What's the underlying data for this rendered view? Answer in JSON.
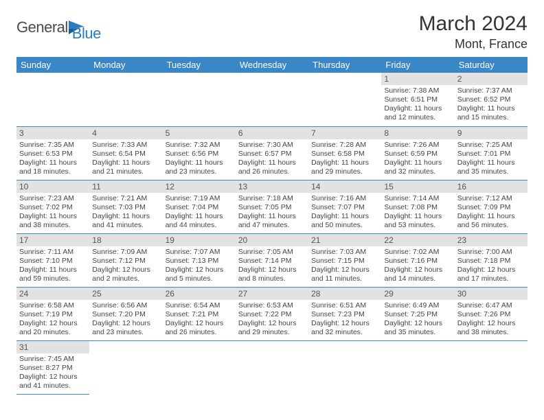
{
  "logo": {
    "text_general": "General",
    "text_blue": "Blue"
  },
  "title": "March 2024",
  "location": "Mont, France",
  "colors": {
    "header_bg": "#3a87c7",
    "header_fg": "#ffffff",
    "daynum_bg": "#e2e2e2",
    "cell_border": "#3a87c7",
    "logo_accent": "#2a7bbf"
  },
  "day_names": [
    "Sunday",
    "Monday",
    "Tuesday",
    "Wednesday",
    "Thursday",
    "Friday",
    "Saturday"
  ],
  "weeks": [
    [
      null,
      null,
      null,
      null,
      null,
      {
        "n": "1",
        "sr": "7:38 AM",
        "ss": "6:51 PM",
        "dl": "11 hours and 12 minutes."
      },
      {
        "n": "2",
        "sr": "7:37 AM",
        "ss": "6:52 PM",
        "dl": "11 hours and 15 minutes."
      }
    ],
    [
      {
        "n": "3",
        "sr": "7:35 AM",
        "ss": "6:53 PM",
        "dl": "11 hours and 18 minutes."
      },
      {
        "n": "4",
        "sr": "7:33 AM",
        "ss": "6:54 PM",
        "dl": "11 hours and 21 minutes."
      },
      {
        "n": "5",
        "sr": "7:32 AM",
        "ss": "6:56 PM",
        "dl": "11 hours and 23 minutes."
      },
      {
        "n": "6",
        "sr": "7:30 AM",
        "ss": "6:57 PM",
        "dl": "11 hours and 26 minutes."
      },
      {
        "n": "7",
        "sr": "7:28 AM",
        "ss": "6:58 PM",
        "dl": "11 hours and 29 minutes."
      },
      {
        "n": "8",
        "sr": "7:26 AM",
        "ss": "6:59 PM",
        "dl": "11 hours and 32 minutes."
      },
      {
        "n": "9",
        "sr": "7:25 AM",
        "ss": "7:01 PM",
        "dl": "11 hours and 35 minutes."
      }
    ],
    [
      {
        "n": "10",
        "sr": "7:23 AM",
        "ss": "7:02 PM",
        "dl": "11 hours and 38 minutes."
      },
      {
        "n": "11",
        "sr": "7:21 AM",
        "ss": "7:03 PM",
        "dl": "11 hours and 41 minutes."
      },
      {
        "n": "12",
        "sr": "7:19 AM",
        "ss": "7:04 PM",
        "dl": "11 hours and 44 minutes."
      },
      {
        "n": "13",
        "sr": "7:18 AM",
        "ss": "7:05 PM",
        "dl": "11 hours and 47 minutes."
      },
      {
        "n": "14",
        "sr": "7:16 AM",
        "ss": "7:07 PM",
        "dl": "11 hours and 50 minutes."
      },
      {
        "n": "15",
        "sr": "7:14 AM",
        "ss": "7:08 PM",
        "dl": "11 hours and 53 minutes."
      },
      {
        "n": "16",
        "sr": "7:12 AM",
        "ss": "7:09 PM",
        "dl": "11 hours and 56 minutes."
      }
    ],
    [
      {
        "n": "17",
        "sr": "7:11 AM",
        "ss": "7:10 PM",
        "dl": "11 hours and 59 minutes."
      },
      {
        "n": "18",
        "sr": "7:09 AM",
        "ss": "7:12 PM",
        "dl": "12 hours and 2 minutes."
      },
      {
        "n": "19",
        "sr": "7:07 AM",
        "ss": "7:13 PM",
        "dl": "12 hours and 5 minutes."
      },
      {
        "n": "20",
        "sr": "7:05 AM",
        "ss": "7:14 PM",
        "dl": "12 hours and 8 minutes."
      },
      {
        "n": "21",
        "sr": "7:03 AM",
        "ss": "7:15 PM",
        "dl": "12 hours and 11 minutes."
      },
      {
        "n": "22",
        "sr": "7:02 AM",
        "ss": "7:16 PM",
        "dl": "12 hours and 14 minutes."
      },
      {
        "n": "23",
        "sr": "7:00 AM",
        "ss": "7:18 PM",
        "dl": "12 hours and 17 minutes."
      }
    ],
    [
      {
        "n": "24",
        "sr": "6:58 AM",
        "ss": "7:19 PM",
        "dl": "12 hours and 20 minutes."
      },
      {
        "n": "25",
        "sr": "6:56 AM",
        "ss": "7:20 PM",
        "dl": "12 hours and 23 minutes."
      },
      {
        "n": "26",
        "sr": "6:54 AM",
        "ss": "7:21 PM",
        "dl": "12 hours and 26 minutes."
      },
      {
        "n": "27",
        "sr": "6:53 AM",
        "ss": "7:22 PM",
        "dl": "12 hours and 29 minutes."
      },
      {
        "n": "28",
        "sr": "6:51 AM",
        "ss": "7:23 PM",
        "dl": "12 hours and 32 minutes."
      },
      {
        "n": "29",
        "sr": "6:49 AM",
        "ss": "7:25 PM",
        "dl": "12 hours and 35 minutes."
      },
      {
        "n": "30",
        "sr": "6:47 AM",
        "ss": "7:26 PM",
        "dl": "12 hours and 38 minutes."
      }
    ],
    [
      {
        "n": "31",
        "sr": "7:45 AM",
        "ss": "8:27 PM",
        "dl": "12 hours and 41 minutes."
      },
      null,
      null,
      null,
      null,
      null,
      null
    ]
  ],
  "labels": {
    "sunrise": "Sunrise:",
    "sunset": "Sunset:",
    "daylight": "Daylight:"
  }
}
